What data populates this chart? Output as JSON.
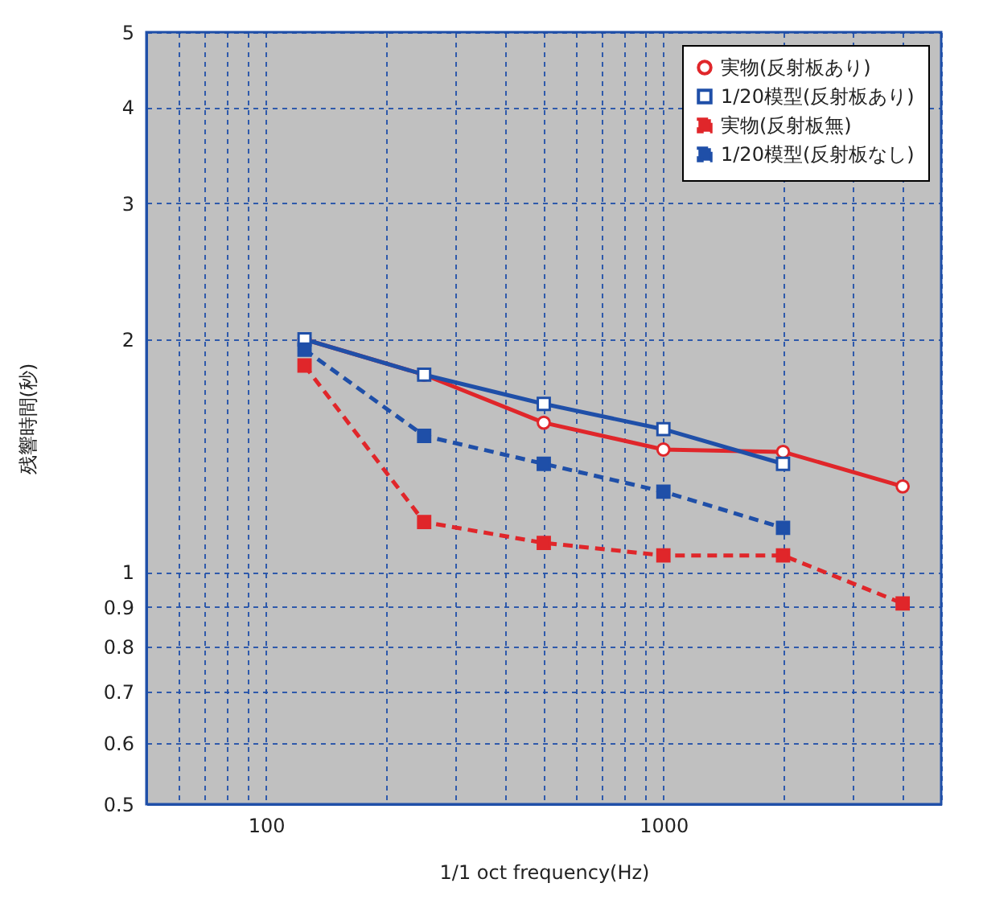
{
  "chart_data": {
    "type": "line",
    "xlabel": "1/1 oct frequency(Hz)",
    "ylabel": "残響時間(秒)",
    "log": "xy",
    "grid": true,
    "legend": "top right",
    "x": [
      125,
      250,
      500,
      1000,
      2000,
      4000
    ],
    "xlim": [
      50,
      5000
    ],
    "xticks": [
      {
        "value": 50,
        "label": null
      },
      {
        "value": 60,
        "label": null
      },
      {
        "value": 70,
        "label": null
      },
      {
        "value": 80,
        "label": null
      },
      {
        "value": 90,
        "label": null
      },
      100,
      {
        "value": 200,
        "label": null
      },
      {
        "value": 300,
        "label": null
      },
      {
        "value": 400,
        "label": null
      },
      {
        "value": 500,
        "label": null
      },
      {
        "value": 600,
        "label": null
      },
      {
        "value": 700,
        "label": null
      },
      {
        "value": 800,
        "label": null
      },
      {
        "value": 900,
        "label": null
      },
      1000,
      {
        "value": 2000,
        "label": null
      },
      {
        "value": 3000,
        "label": null
      },
      {
        "value": 4000,
        "label": null
      },
      {
        "value": 5000,
        "label": null
      }
    ],
    "ylim": [
      0.5,
      5
    ],
    "yticks": [
      0.5,
      0.6,
      0.7,
      0.8,
      0.9,
      1,
      2,
      3,
      4,
      5
    ],
    "series": [
      {
        "name": "実物(反射板あり)",
        "color": "#e0262a",
        "marker": "circle",
        "line_style": "solid",
        "values": [
          2.0,
          1.8,
          1.56,
          1.44,
          1.43,
          1.29
        ]
      },
      {
        "name": "1/20模型(反射板あり)",
        "color": "#1f4fa8",
        "marker": "square",
        "line_style": "solid",
        "values": [
          2.0,
          1.8,
          1.65,
          1.53,
          1.38,
          null
        ]
      },
      {
        "name": "実物(反射板無)",
        "color": "#e0262a",
        "marker": "square",
        "line_style": "dashed",
        "values": [
          1.85,
          1.16,
          1.09,
          1.05,
          1.05,
          0.91
        ]
      },
      {
        "name": "1/20模型(反射板なし)",
        "color": "#1f4fa8",
        "marker": "square",
        "line_style": "dashed",
        "values": [
          1.94,
          1.5,
          1.38,
          1.27,
          1.14,
          null
        ]
      }
    ]
  }
}
